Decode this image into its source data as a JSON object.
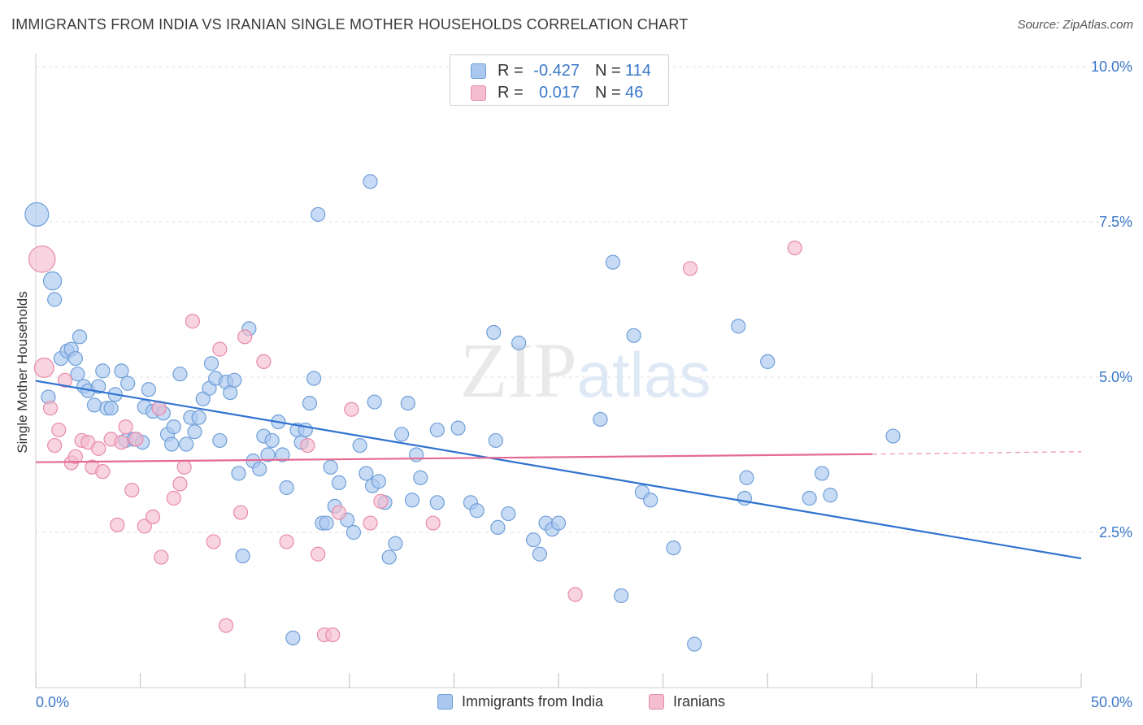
{
  "header": {
    "title": "IMMIGRANTS FROM INDIA VS IRANIAN SINGLE MOTHER HOUSEHOLDS CORRELATION CHART",
    "source": "Source: ZipAtlas.com"
  },
  "legend_top": {
    "rows": [
      {
        "r_label": "R =",
        "r_value": "-0.427",
        "n_label": "N =",
        "n_value": "114"
      },
      {
        "r_label": "R =",
        "r_value": "0.017",
        "n_label": "N =",
        "n_value": "46"
      }
    ]
  },
  "legend_bottom": {
    "items": [
      {
        "label": "Immigrants from India"
      },
      {
        "label": "Iranians"
      }
    ]
  },
  "colors": {
    "india_fill": "#aac8ef",
    "india_stroke": "#6f9fd8",
    "india_line": "#2f72d0",
    "iranian_fill": "#f5bdd0",
    "iranian_stroke": "#e88aab",
    "iranian_line": "#e46a94",
    "tick_label": "#3a78c9",
    "grid": "#e2e2e2"
  },
  "chart_data": {
    "type": "scatter",
    "title": "IMMIGRANTS FROM INDIA VS IRANIAN SINGLE MOTHER HOUSEHOLDS CORRELATION CHART",
    "xlabel": "",
    "ylabel": "Single Mother Households",
    "xlim": [
      0,
      50
    ],
    "ylim": [
      0,
      10.5
    ],
    "x_tick_labels": [
      "0.0%",
      "50.0%"
    ],
    "y_ticks": [
      2.5,
      5.0,
      7.5,
      10.0
    ],
    "y_tick_labels": [
      "2.5%",
      "5.0%",
      "7.5%",
      "10.0%"
    ],
    "grid": "horizontal dashed",
    "legend_position": "bottom",
    "watermark": "ZIPatlas",
    "series": [
      {
        "name": "Immigrants from India",
        "r": -0.427,
        "n": 114,
        "trend": {
          "x": [
            0,
            50
          ],
          "y": [
            4.94,
            2.08
          ]
        },
        "points": [
          [
            0.05,
            7.62,
            1.7
          ],
          [
            0.8,
            6.55,
            1.3
          ],
          [
            0.9,
            6.25,
            1.0
          ],
          [
            1.2,
            5.3,
            1.0
          ],
          [
            1.5,
            5.42,
            1.0
          ],
          [
            1.7,
            5.45,
            1.0
          ],
          [
            1.9,
            5.3,
            1.0
          ],
          [
            2.1,
            5.65,
            1.0
          ],
          [
            2.3,
            4.85,
            1.0
          ],
          [
            2.5,
            4.78,
            1.0
          ],
          [
            2.8,
            4.55,
            1.0
          ],
          [
            3.0,
            4.85,
            1.0
          ],
          [
            3.2,
            5.1,
            1.0
          ],
          [
            3.4,
            4.5,
            1.0
          ],
          [
            3.6,
            4.5,
            1.0
          ],
          [
            3.8,
            4.72,
            1.0
          ],
          [
            4.1,
            5.1,
            1.0
          ],
          [
            4.4,
            4.9,
            1.0
          ],
          [
            4.3,
            3.98,
            1.0
          ],
          [
            4.7,
            4.0,
            1.0
          ],
          [
            5.1,
            3.95,
            1.0
          ],
          [
            5.2,
            4.52,
            1.0
          ],
          [
            5.4,
            4.8,
            1.0
          ],
          [
            5.6,
            4.45,
            1.0
          ],
          [
            5.9,
            4.5,
            1.0
          ],
          [
            6.1,
            4.42,
            1.0
          ],
          [
            6.3,
            4.08,
            1.0
          ],
          [
            6.5,
            3.92,
            1.0
          ],
          [
            6.6,
            4.2,
            1.0
          ],
          [
            6.9,
            5.05,
            1.0
          ],
          [
            7.2,
            3.92,
            1.0
          ],
          [
            7.4,
            4.35,
            1.0
          ],
          [
            7.6,
            4.12,
            1.0
          ],
          [
            7.8,
            4.35,
            1.0
          ],
          [
            8.0,
            4.65,
            1.0
          ],
          [
            8.3,
            4.82,
            1.0
          ],
          [
            8.4,
            5.22,
            1.0
          ],
          [
            8.6,
            4.98,
            1.0
          ],
          [
            8.8,
            3.98,
            1.0
          ],
          [
            9.1,
            4.92,
            1.0
          ],
          [
            9.3,
            4.75,
            1.0
          ],
          [
            9.5,
            4.95,
            1.0
          ],
          [
            9.7,
            3.45,
            1.0
          ],
          [
            9.9,
            2.12,
            1.0
          ],
          [
            10.2,
            5.78,
            1.0
          ],
          [
            10.4,
            3.65,
            1.0
          ],
          [
            10.7,
            3.52,
            1.0
          ],
          [
            10.9,
            4.05,
            1.0
          ],
          [
            11.1,
            3.75,
            1.0
          ],
          [
            11.3,
            3.98,
            1.0
          ],
          [
            11.6,
            4.28,
            1.0
          ],
          [
            11.8,
            3.75,
            1.0
          ],
          [
            12.0,
            3.22,
            1.0
          ],
          [
            12.3,
            0.8,
            1.0
          ],
          [
            12.5,
            4.15,
            1.0
          ],
          [
            12.7,
            3.95,
            1.0
          ],
          [
            12.9,
            4.15,
            1.0
          ],
          [
            13.1,
            4.58,
            1.0
          ],
          [
            13.3,
            4.98,
            1.0
          ],
          [
            13.5,
            7.62,
            1.0
          ],
          [
            13.7,
            2.65,
            1.0
          ],
          [
            13.9,
            2.65,
            1.0
          ],
          [
            14.1,
            3.55,
            1.0
          ],
          [
            14.3,
            2.92,
            1.0
          ],
          [
            14.5,
            3.3,
            1.0
          ],
          [
            14.9,
            2.7,
            1.0
          ],
          [
            15.2,
            2.5,
            1.0
          ],
          [
            15.5,
            3.9,
            1.0
          ],
          [
            15.8,
            3.45,
            1.0
          ],
          [
            16.0,
            8.15,
            1.0
          ],
          [
            16.2,
            4.6,
            1.0
          ],
          [
            16.1,
            3.25,
            1.0
          ],
          [
            16.4,
            3.32,
            1.0
          ],
          [
            16.7,
            2.98,
            1.0
          ],
          [
            16.9,
            2.1,
            1.0
          ],
          [
            17.2,
            2.32,
            1.0
          ],
          [
            17.5,
            4.08,
            1.0
          ],
          [
            17.8,
            4.58,
            1.0
          ],
          [
            18.0,
            3.02,
            1.0
          ],
          [
            18.2,
            3.75,
            1.0
          ],
          [
            18.4,
            3.38,
            1.0
          ],
          [
            19.2,
            2.98,
            1.0
          ],
          [
            19.2,
            4.15,
            1.0
          ],
          [
            20.2,
            4.18,
            1.0
          ],
          [
            20.8,
            2.98,
            1.0
          ],
          [
            21.1,
            2.85,
            1.0
          ],
          [
            21.9,
            5.72,
            1.0
          ],
          [
            22.0,
            3.98,
            1.0
          ],
          [
            22.1,
            2.58,
            1.0
          ],
          [
            22.6,
            2.8,
            1.0
          ],
          [
            23.1,
            5.55,
            1.0
          ],
          [
            23.8,
            2.38,
            1.0
          ],
          [
            24.1,
            2.15,
            1.0
          ],
          [
            24.4,
            2.65,
            1.0
          ],
          [
            24.7,
            2.55,
            1.0
          ],
          [
            25.0,
            2.65,
            1.0
          ],
          [
            27.0,
            4.32,
            1.0
          ],
          [
            27.6,
            6.85,
            1.0
          ],
          [
            28.0,
            1.48,
            1.0
          ],
          [
            28.6,
            5.67,
            1.0
          ],
          [
            29.0,
            3.15,
            1.0
          ],
          [
            29.4,
            3.02,
            1.0
          ],
          [
            30.5,
            2.25,
            1.0
          ],
          [
            31.5,
            0.7,
            1.0
          ],
          [
            33.6,
            5.82,
            1.0
          ],
          [
            33.9,
            3.05,
            1.0
          ],
          [
            34.0,
            3.38,
            1.0
          ],
          [
            35.0,
            5.25,
            1.0
          ],
          [
            37.0,
            3.05,
            1.0
          ],
          [
            37.6,
            3.45,
            1.0
          ],
          [
            38.0,
            3.1,
            1.0
          ],
          [
            41.0,
            4.05,
            1.0
          ],
          [
            0.6,
            4.68,
            1.0
          ],
          [
            2.0,
            5.05,
            1.0
          ]
        ]
      },
      {
        "name": "Iranians",
        "r": 0.017,
        "n": 46,
        "trend": {
          "x": [
            0,
            40
          ],
          "y": [
            3.63,
            3.76
          ]
        },
        "trend_dashed": {
          "x": [
            40,
            50
          ],
          "y": [
            3.76,
            3.8
          ]
        },
        "points": [
          [
            0.3,
            6.9,
            1.9
          ],
          [
            0.4,
            5.15,
            1.4
          ],
          [
            0.7,
            4.5,
            1.0
          ],
          [
            0.9,
            3.9,
            1.0
          ],
          [
            1.1,
            4.15,
            1.0
          ],
          [
            1.4,
            4.95,
            1.0
          ],
          [
            1.7,
            3.62,
            1.0
          ],
          [
            1.9,
            3.72,
            1.0
          ],
          [
            2.2,
            3.98,
            1.0
          ],
          [
            2.5,
            3.95,
            1.0
          ],
          [
            2.7,
            3.55,
            1.0
          ],
          [
            3.0,
            3.85,
            1.0
          ],
          [
            3.2,
            3.48,
            1.0
          ],
          [
            3.6,
            4.0,
            1.0
          ],
          [
            3.9,
            2.62,
            1.0
          ],
          [
            4.1,
            3.95,
            1.0
          ],
          [
            4.3,
            4.2,
            1.0
          ],
          [
            4.6,
            3.18,
            1.0
          ],
          [
            4.8,
            4.0,
            1.0
          ],
          [
            5.2,
            2.6,
            1.0
          ],
          [
            5.6,
            2.75,
            1.0
          ],
          [
            5.9,
            4.5,
            1.0
          ],
          [
            6.0,
            2.1,
            1.0
          ],
          [
            6.6,
            3.05,
            1.0
          ],
          [
            6.9,
            3.28,
            1.0
          ],
          [
            7.1,
            3.55,
            1.0
          ],
          [
            7.5,
            5.9,
            1.0
          ],
          [
            8.5,
            2.35,
            1.0
          ],
          [
            8.8,
            5.45,
            1.0
          ],
          [
            9.1,
            1.0,
            1.0
          ],
          [
            9.8,
            2.82,
            1.0
          ],
          [
            10.0,
            5.65,
            1.0
          ],
          [
            10.9,
            5.25,
            1.0
          ],
          [
            12.0,
            2.35,
            1.0
          ],
          [
            13.0,
            3.9,
            1.0
          ],
          [
            13.5,
            2.15,
            1.0
          ],
          [
            13.8,
            0.85,
            1.0
          ],
          [
            14.2,
            0.85,
            1.0
          ],
          [
            14.5,
            2.82,
            1.0
          ],
          [
            15.1,
            4.48,
            1.0
          ],
          [
            16.0,
            2.65,
            1.0
          ],
          [
            16.5,
            3.0,
            1.0
          ],
          [
            19.0,
            2.65,
            1.0
          ],
          [
            25.8,
            1.5,
            1.0
          ],
          [
            31.3,
            6.75,
            1.0
          ],
          [
            36.3,
            7.08,
            1.0
          ]
        ]
      }
    ]
  }
}
